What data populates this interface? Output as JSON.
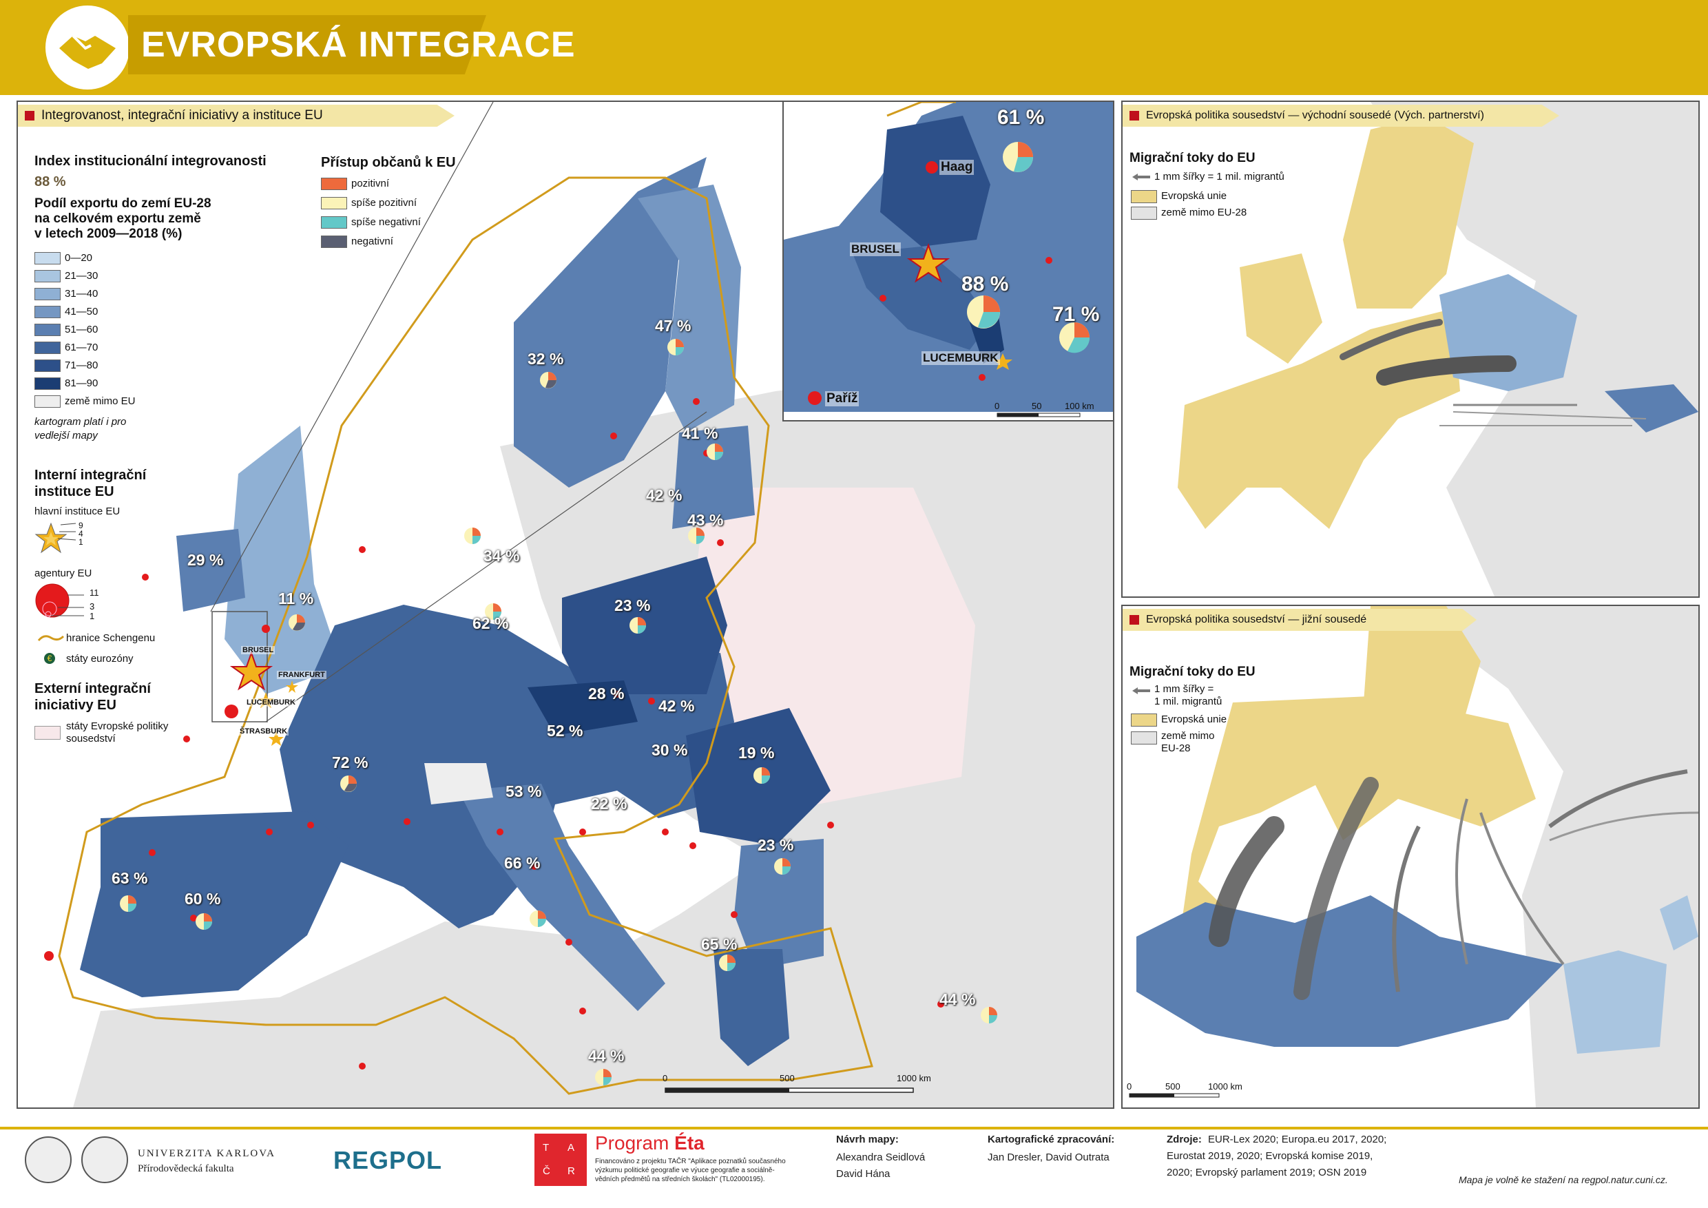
{
  "header": {
    "title": "EVROPSKÁ INTEGRACE",
    "icon": "handshake-icon"
  },
  "main_map": {
    "section_label": "Integrovanost, integrační iniciativy a instituce EU",
    "legend": {
      "index_title": "Index institucionální integrovanosti",
      "index_example": "88 %",
      "export_title_1": "Podíl exportu do zemí EU-28",
      "export_title_2": "na celkovém exportu země",
      "export_title_3": "v letech 2009—2018 (%)",
      "classes": [
        {
          "label": "0—20",
          "color": "#c8dcee"
        },
        {
          "label": "21—30",
          "color": "#a9c5e0"
        },
        {
          "label": "31—40",
          "color": "#8fb0d4"
        },
        {
          "label": "41—50",
          "color": "#7597c2"
        },
        {
          "label": "51—60",
          "color": "#5b7fb1"
        },
        {
          "label": "61—70",
          "color": "#40659b"
        },
        {
          "label": "71—80",
          "color": "#2d5089"
        },
        {
          "label": "81—90",
          "color": "#1b3d73"
        },
        {
          "label": "země mimo EU",
          "color": "#eeeeee"
        }
      ],
      "cartogram_note_1": "kartogram platí i pro",
      "cartogram_note_2": "vedlejší mapy",
      "access_title": "Přístup občanů k EU",
      "access": [
        {
          "label": "pozitivní",
          "color": "#ee6a3c"
        },
        {
          "label": "spíše pozitivní",
          "color": "#fbf3b8"
        },
        {
          "label": "spíše negativní",
          "color": "#63c8c8"
        },
        {
          "label": "negativní",
          "color": "#5a5f72"
        }
      ],
      "internal_title_1": "Interní integrační",
      "internal_title_2": "instituce EU",
      "main_inst_label": "hlavní instituce EU",
      "star_values": [
        "9",
        "4",
        "1"
      ],
      "agency_label": "agentury EU",
      "circle_values": [
        "11",
        "3",
        "1"
      ],
      "schengen_label": "hranice Schengenu",
      "euro_label": "státy eurozóny",
      "external_title_1": "Externí integrační",
      "external_title_2": "iniciativy EU",
      "neighbourhood_label_1": "státy Evropské politiky",
      "neighbourhood_label_2": "sousedství"
    },
    "percentages": [
      "47 %",
      "32 %",
      "41 %",
      "42 %",
      "43 %",
      "34 %",
      "29 %",
      "11 %",
      "62 %",
      "23 %",
      "28 %",
      "42 %",
      "52 %",
      "30 %",
      "19 %",
      "72 %",
      "53 %",
      "22 %",
      "66 %",
      "23 %",
      "63 %",
      "60 %",
      "65 %",
      "44 %",
      "44 %"
    ],
    "cities": [
      "BRUSEL",
      "FRANKFURT",
      "LUCEMBURK",
      "ŠTRASBURK"
    ],
    "scale": [
      "0",
      "500",
      "1000 km"
    ]
  },
  "inset": {
    "percentages": [
      "61 %",
      "88 %",
      "71 %"
    ],
    "cities": [
      "Haag",
      "BRUSEL",
      "LUCEMBURK",
      "Paříž"
    ],
    "scale": [
      "0",
      "50",
      "100 km"
    ]
  },
  "east_map": {
    "section_label": "Evropská politika sousedství — východní sousedé (Vých. partnerství)",
    "flows_title": "Migrační toky do EU",
    "flows_note": "1 mm šířky = 1 mil. migrantů",
    "eu_label": "Evropská unie",
    "non_eu_label": "země mimo EU-28"
  },
  "south_map": {
    "section_label": "Evropská politika sousedství — jižní sousedé",
    "flows_title": "Migrační toky do EU",
    "flows_note_1": "1 mm šířky =",
    "flows_note_2": "1 mil. migrantů",
    "eu_label": "Evropská unie",
    "non_eu_label_1": "země mimo",
    "non_eu_label_2": "EU-28",
    "scale": [
      "0",
      "500",
      "1000 km"
    ]
  },
  "footer": {
    "university_1": "UNIVERZITA KARLOVA",
    "university_2": "Přírodovědecká fakulta",
    "regpol": "REGPOL",
    "tacr_letters": [
      "T",
      "A",
      "Č",
      "R"
    ],
    "program_1": "Program ",
    "program_2": "Éta",
    "program_text_1": "Financováno z projektu TAČR \"Aplikace poznatků současného",
    "program_text_2": "výzkumu politické geografie ve výuce geografie a sociálně-",
    "program_text_3": "vědních předmětů na středních školách\" (TL02000195).",
    "design_title": "Návrh mapy:",
    "design_names_1": "Alexandra Seidlová",
    "design_names_2": "David Hána",
    "carto_title": "Kartografické zpracování:",
    "carto_names": "Jan Dresler, David Outrata",
    "sources_title": "Zdroje:",
    "sources_1": "EUR-Lex 2020; Europa.eu 2017, 2020;",
    "sources_2": "Eurostat 2019, 2020; Evropská komise 2019,",
    "sources_3": "2020; Evropský parlament 2019; OSN 2019",
    "download": "Mapa je volně ke stažení na regpol.natur.cuni.cz."
  }
}
